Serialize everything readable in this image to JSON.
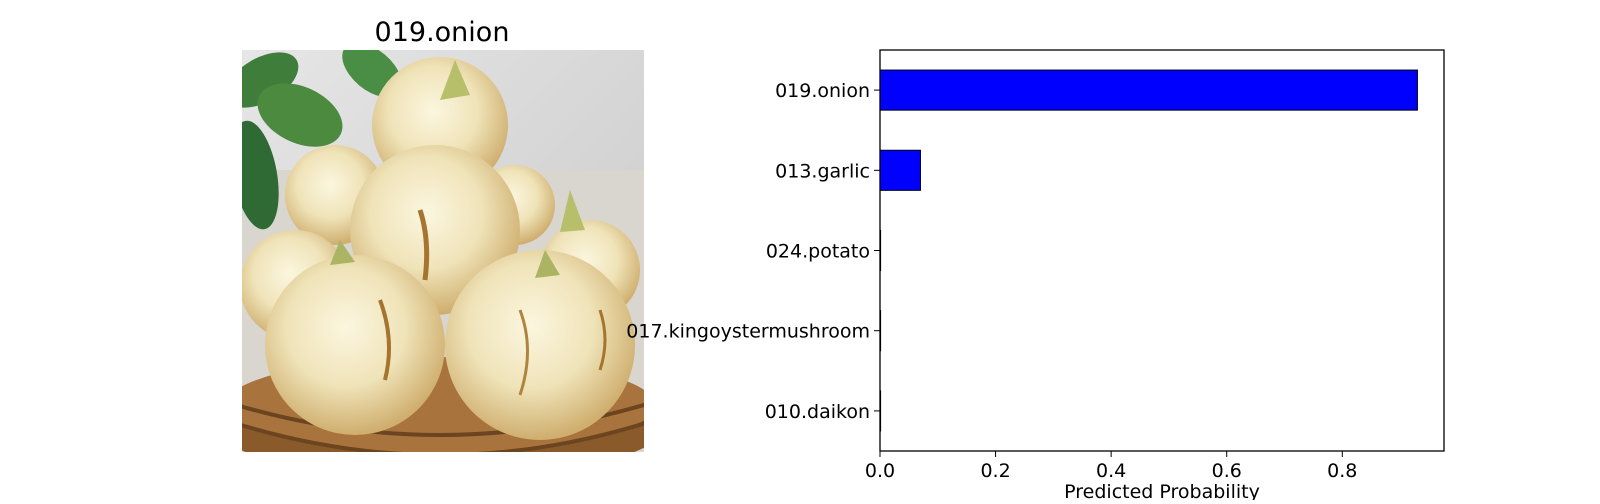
{
  "image_panel": {
    "title": "019.onion",
    "subject": "pile of yellow onions in a woven basket"
  },
  "chart_data": {
    "type": "bar",
    "orientation": "horizontal",
    "categories": [
      "019.onion",
      "013.garlic",
      "024.potato",
      "017.kingoystermushroom",
      "010.daikon"
    ],
    "values": [
      0.93,
      0.07,
      0.0005,
      0.0005,
      0.0003
    ],
    "xlabel": "Predicted Probability",
    "ylabel": "",
    "xlim": [
      0,
      0.976
    ],
    "xticks": [
      0.0,
      0.2,
      0.4,
      0.6,
      0.8
    ],
    "xtick_labels": [
      "0.0",
      "0.2",
      "0.4",
      "0.6",
      "0.8"
    ],
    "grid": false,
    "bar_color": "#0000ff",
    "edge_color": "#000000"
  }
}
